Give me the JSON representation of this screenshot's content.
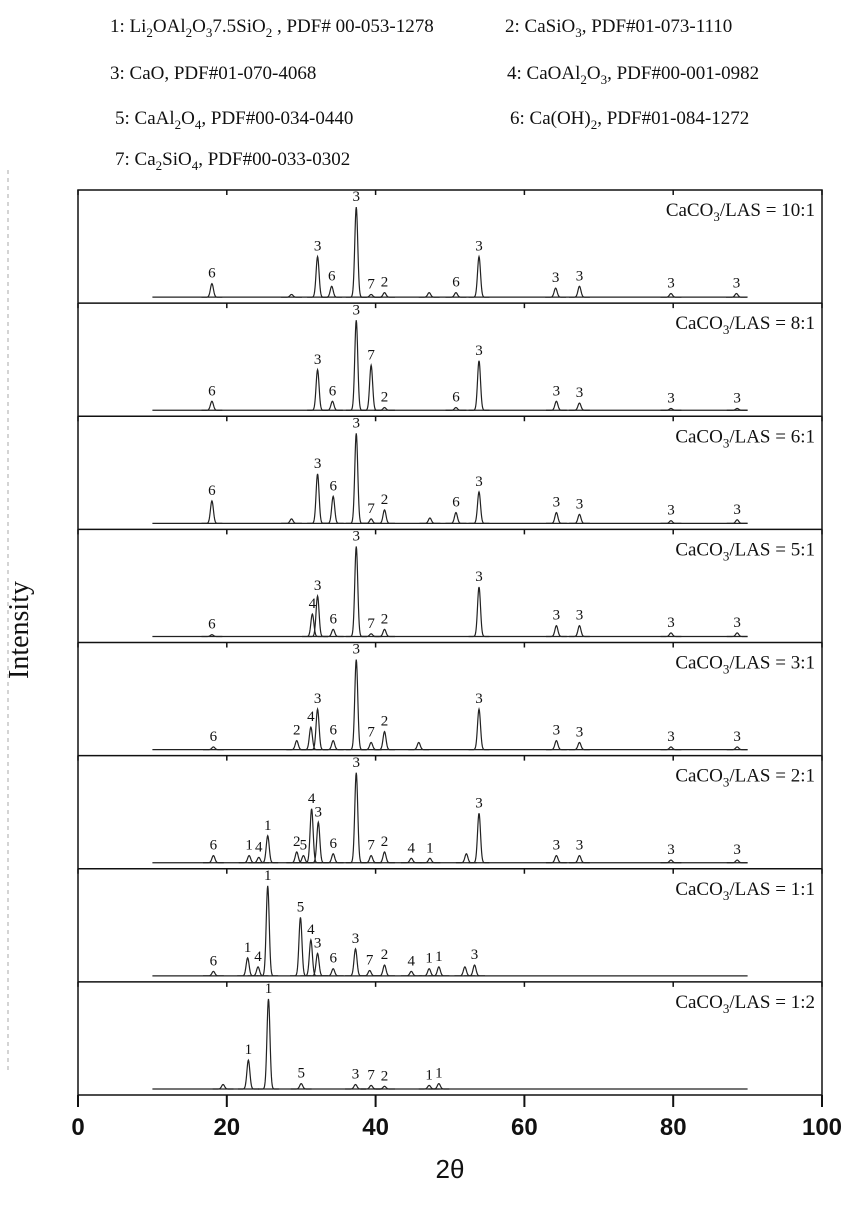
{
  "chart_data": {
    "type": "xrd-stack",
    "legend": [
      [
        {
          "t": "1: Li"
        },
        {
          "s": "2"
        },
        {
          "t": "OAl"
        },
        {
          "s": "2"
        },
        {
          "t": "O"
        },
        {
          "s": "3"
        },
        {
          "t": "7.5SiO"
        },
        {
          "s": "2"
        },
        {
          "t": " , PDF# 00-053-1278"
        }
      ],
      [
        {
          "t": "2: CaSiO"
        },
        {
          "s": "3"
        },
        {
          "t": ", PDF#01-073-1110"
        }
      ],
      [
        {
          "t": "3: CaO, PDF#01-070-4068"
        }
      ],
      [
        {
          "t": "4: CaOAl"
        },
        {
          "s": "2"
        },
        {
          "t": "O"
        },
        {
          "s": "3"
        },
        {
          "t": ", PDF#00-001-0982"
        }
      ],
      [
        {
          "t": "5: CaAl"
        },
        {
          "s": "2"
        },
        {
          "t": "O"
        },
        {
          "s": "4"
        },
        {
          "t": ", PDF#00-034-0440"
        }
      ],
      [
        {
          "t": "6: Ca(OH)"
        },
        {
          "s": "2"
        },
        {
          "t": ", PDF#01-084-1272"
        }
      ],
      [
        {
          "t": "7: Ca"
        },
        {
          "s": "2"
        },
        {
          "t": "SiO"
        },
        {
          "s": "4"
        },
        {
          "t": ", PDF#00-033-0302"
        }
      ]
    ],
    "xlabel": "2θ",
    "ylabel": "Intensity",
    "xlim": [
      0,
      100
    ],
    "xticks": [
      0,
      20,
      40,
      60,
      80,
      100
    ],
    "range": [
      10,
      90
    ],
    "color": "#222222",
    "panels": [
      {
        "label": [
          {
            "t": "CaCO"
          },
          {
            "s": "3"
          },
          {
            "t": "/LAS = 10:1"
          }
        ],
        "peaks": [
          {
            "x": 18,
            "intensity": 15,
            "label": "6"
          },
          {
            "x": 28.7,
            "intensity": 3
          },
          {
            "x": 32.2,
            "intensity": 45,
            "label": "3"
          },
          {
            "x": 34.1,
            "intensity": 12,
            "label": "6"
          },
          {
            "x": 37.4,
            "intensity": 100,
            "label": "3"
          },
          {
            "x": 39.4,
            "intensity": 3,
            "label": "7"
          },
          {
            "x": 41.2,
            "intensity": 5,
            "label": "2"
          },
          {
            "x": 47.2,
            "intensity": 5
          },
          {
            "x": 50.8,
            "intensity": 5,
            "label": "6"
          },
          {
            "x": 53.9,
            "intensity": 45,
            "label": "3"
          },
          {
            "x": 64.2,
            "intensity": 10,
            "label": "3"
          },
          {
            "x": 67.4,
            "intensity": 12,
            "label": "3"
          },
          {
            "x": 79.7,
            "intensity": 4,
            "label": "3"
          },
          {
            "x": 88.5,
            "intensity": 4,
            "label": "3"
          }
        ]
      },
      {
        "label": [
          {
            "t": "CaCO"
          },
          {
            "s": "3"
          },
          {
            "t": "/LAS = 8:1"
          }
        ],
        "peaks": [
          {
            "x": 18,
            "intensity": 10,
            "label": "6"
          },
          {
            "x": 32.2,
            "intensity": 45,
            "label": "3"
          },
          {
            "x": 34.2,
            "intensity": 10,
            "label": "6"
          },
          {
            "x": 37.4,
            "intensity": 100,
            "label": "3"
          },
          {
            "x": 39.4,
            "intensity": 50,
            "label": "7"
          },
          {
            "x": 41.2,
            "intensity": 3,
            "label": "2"
          },
          {
            "x": 50.8,
            "intensity": 3,
            "label": "6"
          },
          {
            "x": 53.9,
            "intensity": 55,
            "label": "3"
          },
          {
            "x": 64.3,
            "intensity": 10,
            "label": "3"
          },
          {
            "x": 67.4,
            "intensity": 8,
            "label": "3"
          },
          {
            "x": 79.7,
            "intensity": 2,
            "label": "3"
          },
          {
            "x": 88.6,
            "intensity": 2,
            "label": "3"
          }
        ]
      },
      {
        "label": [
          {
            "t": "CaCO"
          },
          {
            "s": "3"
          },
          {
            "t": "/LAS = 6:1"
          }
        ],
        "peaks": [
          {
            "x": 18,
            "intensity": 25,
            "label": "6"
          },
          {
            "x": 28.7,
            "intensity": 5
          },
          {
            "x": 32.2,
            "intensity": 55,
            "label": "3"
          },
          {
            "x": 34.3,
            "intensity": 30,
            "label": "6"
          },
          {
            "x": 37.4,
            "intensity": 100,
            "label": "3"
          },
          {
            "x": 39.4,
            "intensity": 5,
            "label": "7"
          },
          {
            "x": 41.2,
            "intensity": 15,
            "label": "2"
          },
          {
            "x": 47.3,
            "intensity": 6
          },
          {
            "x": 50.8,
            "intensity": 12,
            "label": "6"
          },
          {
            "x": 53.9,
            "intensity": 35,
            "label": "3"
          },
          {
            "x": 64.3,
            "intensity": 12,
            "label": "3"
          },
          {
            "x": 67.4,
            "intensity": 10,
            "label": "3"
          },
          {
            "x": 79.7,
            "intensity": 3,
            "label": "3"
          },
          {
            "x": 88.6,
            "intensity": 4,
            "label": "3"
          }
        ]
      },
      {
        "label": [
          {
            "t": "CaCO"
          },
          {
            "s": "3"
          },
          {
            "t": "/LAS = 5:1"
          }
        ],
        "peaks": [
          {
            "x": 18,
            "intensity": 2,
            "label": "6"
          },
          {
            "x": 31.5,
            "intensity": 25,
            "label": "4"
          },
          {
            "x": 32.2,
            "intensity": 45,
            "label": "3"
          },
          {
            "x": 34.3,
            "intensity": 8,
            "label": "6"
          },
          {
            "x": 37.4,
            "intensity": 100,
            "label": "3"
          },
          {
            "x": 39.4,
            "intensity": 3,
            "label": "7"
          },
          {
            "x": 41.2,
            "intensity": 8,
            "label": "2"
          },
          {
            "x": 53.9,
            "intensity": 55,
            "label": "3"
          },
          {
            "x": 64.3,
            "intensity": 12,
            "label": "3"
          },
          {
            "x": 67.4,
            "intensity": 12,
            "label": "3"
          },
          {
            "x": 79.7,
            "intensity": 4,
            "label": "3"
          },
          {
            "x": 88.6,
            "intensity": 4,
            "label": "3"
          }
        ]
      },
      {
        "label": [
          {
            "t": "CaCO"
          },
          {
            "s": "3"
          },
          {
            "t": "/LAS = 3:1"
          }
        ],
        "peaks": [
          {
            "x": 18.2,
            "intensity": 3,
            "label": "6"
          },
          {
            "x": 29.4,
            "intensity": 10,
            "label": "2"
          },
          {
            "x": 31.3,
            "intensity": 25,
            "label": "4"
          },
          {
            "x": 32.2,
            "intensity": 45,
            "label": "3"
          },
          {
            "x": 34.3,
            "intensity": 10,
            "label": "6"
          },
          {
            "x": 37.4,
            "intensity": 100,
            "label": "3"
          },
          {
            "x": 39.4,
            "intensity": 8,
            "label": "7"
          },
          {
            "x": 41.2,
            "intensity": 20,
            "label": "2"
          },
          {
            "x": 45.8,
            "intensity": 8
          },
          {
            "x": 53.9,
            "intensity": 45,
            "label": "3"
          },
          {
            "x": 64.3,
            "intensity": 10,
            "label": "3"
          },
          {
            "x": 67.4,
            "intensity": 8,
            "label": "3"
          },
          {
            "x": 79.7,
            "intensity": 3,
            "label": "3"
          },
          {
            "x": 88.6,
            "intensity": 3,
            "label": "3"
          }
        ]
      },
      {
        "label": [
          {
            "t": "CaCO"
          },
          {
            "s": "3"
          },
          {
            "t": "/LAS = 2:1"
          }
        ],
        "peaks": [
          {
            "x": 18.2,
            "intensity": 8,
            "label": "6"
          },
          {
            "x": 23,
            "intensity": 8,
            "label": "1"
          },
          {
            "x": 24.3,
            "intensity": 6,
            "label": "4"
          },
          {
            "x": 25.5,
            "intensity": 30,
            "label": "1"
          },
          {
            "x": 29.4,
            "intensity": 12,
            "label": "2"
          },
          {
            "x": 30.3,
            "intensity": 8,
            "label": "5"
          },
          {
            "x": 31.4,
            "intensity": 60,
            "label": "4"
          },
          {
            "x": 32.3,
            "intensity": 45,
            "label": "3"
          },
          {
            "x": 34.3,
            "intensity": 10,
            "label": "6"
          },
          {
            "x": 37.4,
            "intensity": 100,
            "label": "3"
          },
          {
            "x": 39.4,
            "intensity": 8,
            "label": "7"
          },
          {
            "x": 41.2,
            "intensity": 12,
            "label": "2"
          },
          {
            "x": 44.8,
            "intensity": 5,
            "label": "4"
          },
          {
            "x": 47.3,
            "intensity": 5,
            "label": "1"
          },
          {
            "x": 52.2,
            "intensity": 10
          },
          {
            "x": 53.9,
            "intensity": 55,
            "label": "3"
          },
          {
            "x": 64.3,
            "intensity": 8,
            "label": "3"
          },
          {
            "x": 67.4,
            "intensity": 8,
            "label": "3"
          },
          {
            "x": 79.7,
            "intensity": 3,
            "label": "3"
          },
          {
            "x": 88.6,
            "intensity": 3,
            "label": "3"
          }
        ]
      },
      {
        "label": [
          {
            "t": "CaCO"
          },
          {
            "s": "3"
          },
          {
            "t": "/LAS = 1:1"
          }
        ],
        "peaks": [
          {
            "x": 18.2,
            "intensity": 5,
            "label": "6"
          },
          {
            "x": 22.8,
            "intensity": 20,
            "label": "1"
          },
          {
            "x": 24.2,
            "intensity": 10,
            "label": "4"
          },
          {
            "x": 25.5,
            "intensity": 100,
            "label": "1"
          },
          {
            "x": 29.9,
            "intensity": 65,
            "label": "5"
          },
          {
            "x": 31.3,
            "intensity": 40,
            "label": "4"
          },
          {
            "x": 32.2,
            "intensity": 25,
            "label": "3"
          },
          {
            "x": 34.3,
            "intensity": 8,
            "label": "6"
          },
          {
            "x": 37.3,
            "intensity": 30,
            "label": "3"
          },
          {
            "x": 39.2,
            "intensity": 6,
            "label": "7"
          },
          {
            "x": 41.2,
            "intensity": 12,
            "label": "2"
          },
          {
            "x": 44.8,
            "intensity": 5,
            "label": "4"
          },
          {
            "x": 47.2,
            "intensity": 8,
            "label": "1"
          },
          {
            "x": 48.5,
            "intensity": 10,
            "label": "1"
          },
          {
            "x": 52,
            "intensity": 10
          },
          {
            "x": 53.3,
            "intensity": 12,
            "label": "3"
          }
        ]
      },
      {
        "label": [
          {
            "t": "CaCO"
          },
          {
            "s": "3"
          },
          {
            "t": "/LAS = 1:2"
          }
        ],
        "peaks": [
          {
            "x": 19.5,
            "intensity": 5
          },
          {
            "x": 22.9,
            "intensity": 32,
            "label": "1"
          },
          {
            "x": 25.6,
            "intensity": 100,
            "label": "1"
          },
          {
            "x": 30,
            "intensity": 6,
            "label": "5"
          },
          {
            "x": 37.3,
            "intensity": 5,
            "label": "3"
          },
          {
            "x": 39.4,
            "intensity": 4,
            "label": "7"
          },
          {
            "x": 41.2,
            "intensity": 3,
            "label": "2"
          },
          {
            "x": 47.2,
            "intensity": 4,
            "label": "1"
          },
          {
            "x": 48.5,
            "intensity": 6,
            "label": "1"
          }
        ]
      }
    ]
  }
}
